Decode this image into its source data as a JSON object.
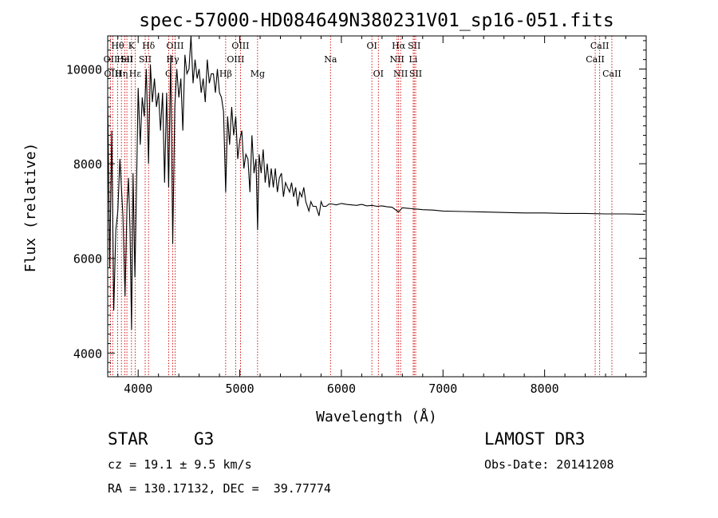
{
  "chart_data": {
    "type": "line",
    "title": "spec-57000-HD084649N380231V01_sp16-051.fits",
    "xlabel": "Wavelength (Å)",
    "ylabel": "Flux (relative)",
    "xlim": [
      3700,
      9000
    ],
    "ylim": [
      3500,
      10700
    ],
    "xticks": [
      4000,
      5000,
      6000,
      7000,
      8000
    ],
    "xtick_labels": [
      "4000",
      "5000",
      "6000",
      "7000",
      "8000"
    ],
    "yticks": [
      4000,
      6000,
      8000,
      10000
    ],
    "ytick_labels": [
      "4000",
      "6000",
      "8000",
      "10000"
    ],
    "grid": false,
    "series": [
      {
        "name": "flux",
        "x": [
          3700,
          3720,
          3740,
          3760,
          3780,
          3800,
          3820,
          3835,
          3850,
          3870,
          3890,
          3905,
          3920,
          3935,
          3950,
          3968,
          3985,
          4000,
          4020,
          4040,
          4060,
          4080,
          4102,
          4120,
          4140,
          4160,
          4180,
          4200,
          4220,
          4240,
          4260,
          4280,
          4300,
          4320,
          4340,
          4360,
          4380,
          4400,
          4420,
          4440,
          4460,
          4480,
          4500,
          4520,
          4540,
          4560,
          4580,
          4600,
          4620,
          4640,
          4660,
          4680,
          4700,
          4720,
          4740,
          4760,
          4780,
          4800,
          4820,
          4840,
          4861,
          4880,
          4900,
          4920,
          4940,
          4960,
          4980,
          5000,
          5020,
          5040,
          5060,
          5080,
          5100,
          5120,
          5140,
          5160,
          5175,
          5190,
          5210,
          5230,
          5250,
          5270,
          5290,
          5310,
          5330,
          5350,
          5370,
          5390,
          5410,
          5430,
          5450,
          5470,
          5490,
          5510,
          5530,
          5550,
          5570,
          5590,
          5610,
          5630,
          5650,
          5680,
          5700,
          5720,
          5750,
          5780,
          5800,
          5820,
          5850,
          5880,
          5900,
          5950,
          6000,
          6050,
          6100,
          6150,
          6200,
          6250,
          6300,
          6350,
          6400,
          6450,
          6500,
          6563,
          6600,
          6650,
          6700,
          6750,
          6800,
          6900,
          7000,
          7200,
          7400,
          7600,
          7800,
          8000,
          8200,
          8400,
          8600,
          8800,
          8990
        ],
        "y": [
          9400,
          5800,
          8700,
          4900,
          6600,
          7000,
          8100,
          7500,
          6900,
          5200,
          7100,
          7700,
          6600,
          4500,
          7800,
          5600,
          7700,
          9600,
          8400,
          9400,
          9000,
          10000,
          8000,
          10100,
          9300,
          9800,
          9200,
          9500,
          8700,
          9500,
          7600,
          9500,
          7500,
          10300,
          6300,
          9200,
          10000,
          9400,
          9800,
          8700,
          10300,
          9900,
          10000,
          10700,
          9700,
          10200,
          9800,
          10000,
          9500,
          9800,
          9300,
          10200,
          9700,
          9900,
          9900,
          9500,
          10000,
          9500,
          9400,
          9100,
          7400,
          9000,
          8400,
          9200,
          8600,
          9000,
          8100,
          8500,
          8700,
          7900,
          8200,
          8100,
          7400,
          8600,
          7800,
          8100,
          6600,
          8200,
          7800,
          8300,
          7600,
          8000,
          7500,
          7900,
          7500,
          7900,
          7400,
          7700,
          7800,
          7300,
          7600,
          7500,
          7400,
          7600,
          7300,
          7500,
          7100,
          7400,
          7300,
          7500,
          7200,
          7000,
          7200,
          7100,
          7100,
          6900,
          7200,
          7100,
          7100,
          7150,
          7150,
          7130,
          7160,
          7140,
          7130,
          7120,
          7140,
          7110,
          7120,
          7100,
          7110,
          7090,
          7080,
          6980,
          7070,
          7060,
          7050,
          7040,
          7030,
          7020,
          7000,
          6990,
          6980,
          6970,
          6960,
          6960,
          6950,
          6950,
          6940,
          6940,
          6930
        ]
      }
    ],
    "lines": [
      {
        "wl": 3727,
        "row": 1,
        "label": "OII"
      },
      {
        "wl": 3750,
        "row": 2,
        "label": "OIII"
      },
      {
        "wl": 3798,
        "row": 0,
        "label": "Hθ"
      },
      {
        "wl": 3835,
        "row": 2,
        "label": "Hη"
      },
      {
        "wl": 3869,
        "row": 1,
        "label": "HeI"
      },
      {
        "wl": 3889,
        "row": 1,
        "label": "SII"
      },
      {
        "wl": 3934,
        "row": 0,
        "label": "K"
      },
      {
        "wl": 3970,
        "row": 2,
        "label": "Hε"
      },
      {
        "wl": 4069,
        "row": 1,
        "label": "SII"
      },
      {
        "wl": 4102,
        "row": 0,
        "label": "Hδ"
      },
      {
        "wl": 4300,
        "row": 2,
        "label": "G"
      },
      {
        "wl": 4340,
        "row": 1,
        "label": "Hγ"
      },
      {
        "wl": 4363,
        "row": 0,
        "label": "OIII"
      },
      {
        "wl": 4861,
        "row": 2,
        "label": "Hβ"
      },
      {
        "wl": 4959,
        "row": 1,
        "label": "OIII"
      },
      {
        "wl": 5007,
        "row": 0,
        "label": "OIII"
      },
      {
        "wl": 5175,
        "row": 2,
        "label": "Mg"
      },
      {
        "wl": 5893,
        "row": 1,
        "label": "Na"
      },
      {
        "wl": 6300,
        "row": 0,
        "label": "OI"
      },
      {
        "wl": 6364,
        "row": 2,
        "label": "OI"
      },
      {
        "wl": 6548,
        "row": 1,
        "label": "NII"
      },
      {
        "wl": 6563,
        "row": 0,
        "label": "Hα"
      },
      {
        "wl": 6583,
        "row": 2,
        "label": "NII"
      },
      {
        "wl": 6707,
        "row": 1,
        "label": "Li"
      },
      {
        "wl": 6717,
        "row": 0,
        "label": "SII"
      },
      {
        "wl": 6731,
        "row": 2,
        "label": "SII"
      },
      {
        "wl": 8498,
        "row": 1,
        "label": "CaII"
      },
      {
        "wl": 8542,
        "row": 0,
        "label": "CaII"
      },
      {
        "wl": 8662,
        "row": 2,
        "label": "CaII"
      }
    ],
    "colors": {
      "spectrum": "#000000",
      "line_markers": "#cc0000",
      "axes": "#000000"
    }
  },
  "info": {
    "object_class": "STAR",
    "subclass": "G3",
    "redshift": "cz = 19.1 ± 9.5 km/s",
    "coords": "RA = 130.17132, DEC =  39.77774",
    "survey": "LAMOST DR3",
    "obs_date": "Obs-Date: 20141208"
  }
}
